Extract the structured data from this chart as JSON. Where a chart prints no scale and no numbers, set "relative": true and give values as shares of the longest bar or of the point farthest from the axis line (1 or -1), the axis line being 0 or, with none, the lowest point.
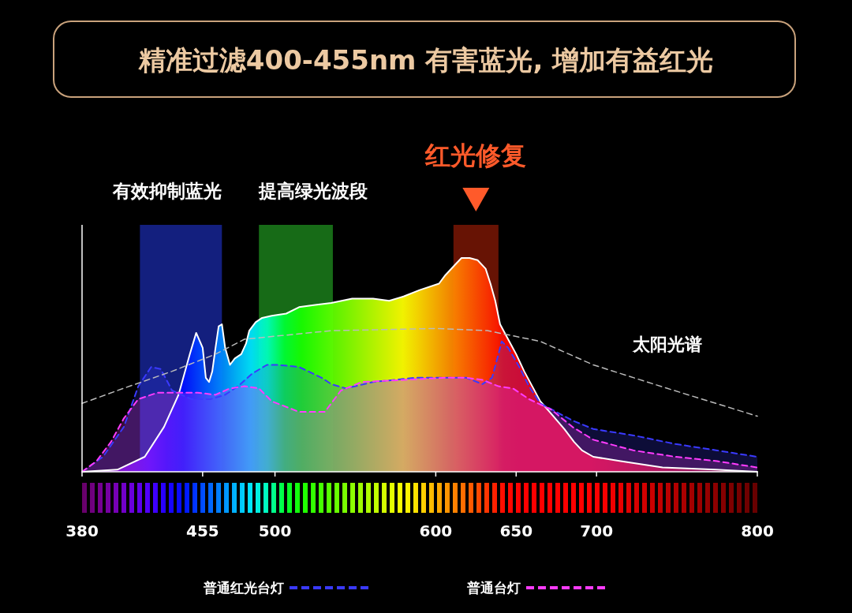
{
  "chart_data": {
    "type": "area",
    "title": "精准过滤400-455nm 有害蓝光, 增加有益红光",
    "relative": true,
    "xlim": [
      380,
      800
    ],
    "xticks": [
      380,
      455,
      500,
      600,
      650,
      700,
      800
    ],
    "bands": [
      {
        "axis": "x",
        "from": 416,
        "to": 467,
        "label": "有效抑制蓝光",
        "color": "#1a2aa8"
      },
      {
        "axis": "x",
        "from": 490,
        "to": 536,
        "label": "提高绿光波段",
        "color": "#1f8f1f"
      },
      {
        "axis": "x",
        "from": 611,
        "to": 639,
        "label": "红光修复",
        "color": "#8a1a05"
      }
    ],
    "legend": "bottom",
    "series": [
      {
        "color": "#ffffff",
        "line_style": "solid",
        "x": [
          380,
          402,
          419,
          431,
          440,
          447,
          451,
          455,
          457,
          459,
          461,
          463,
          465,
          467,
          469,
          472,
          475,
          479,
          482,
          484,
          488,
          492,
          498,
          507,
          515,
          525,
          535,
          548,
          561,
          571,
          580,
          590,
          602,
          606,
          611,
          616,
          621,
          626,
          631,
          634,
          637,
          640,
          645,
          650,
          655,
          660,
          665,
          672,
          680,
          686,
          691,
          698,
          715,
          741,
          774,
          800
        ],
        "values": [
          0,
          0.01,
          0.07,
          0.21,
          0.36,
          0.55,
          0.65,
          0.58,
          0.44,
          0.42,
          0.47,
          0.58,
          0.68,
          0.69,
          0.58,
          0.5,
          0.53,
          0.55,
          0.6,
          0.66,
          0.7,
          0.72,
          0.73,
          0.74,
          0.77,
          0.78,
          0.79,
          0.81,
          0.81,
          0.8,
          0.82,
          0.85,
          0.88,
          0.92,
          0.96,
          1,
          1,
          0.99,
          0.95,
          0.88,
          0.8,
          0.69,
          0.62,
          0.55,
          0.47,
          0.4,
          0.33,
          0.27,
          0.2,
          0.14,
          0.1,
          0.07,
          0.05,
          0.02,
          0.01,
          0
        ]
      },
      {
        "name": "普通红光台灯",
        "color": "#3a3aff",
        "line_style": "dashed",
        "x": [
          380,
          393,
          406,
          415,
          423,
          429,
          436,
          448,
          460,
          469,
          477,
          486,
          495,
          502,
          515,
          529,
          535,
          544,
          561,
          587,
          606,
          619,
          629,
          635,
          639,
          641,
          645,
          652,
          658,
          665,
          675,
          685,
          698,
          723,
          749,
          775,
          800
        ],
        "values": [
          0,
          0.07,
          0.21,
          0.4,
          0.49,
          0.48,
          0.38,
          0.34,
          0.34,
          0.36,
          0.4,
          0.46,
          0.5,
          0.5,
          0.49,
          0.44,
          0.41,
          0.39,
          0.42,
          0.44,
          0.44,
          0.44,
          0.41,
          0.44,
          0.55,
          0.61,
          0.58,
          0.49,
          0.4,
          0.32,
          0.28,
          0.24,
          0.2,
          0.17,
          0.13,
          0.1,
          0.07
        ]
      },
      {
        "name": "普通台灯",
        "color": "#ff3cff",
        "line_style": "dashed",
        "x": [
          380,
          389,
          398,
          406,
          415,
          427,
          452,
          463,
          472,
          481,
          490,
          498,
          515,
          531,
          541,
          554,
          580,
          606,
          619,
          629,
          639,
          648,
          658,
          672,
          685,
          698,
          723,
          749,
          775,
          800
        ],
        "values": [
          0,
          0.05,
          0.14,
          0.25,
          0.34,
          0.37,
          0.37,
          0.36,
          0.39,
          0.4,
          0.39,
          0.33,
          0.28,
          0.28,
          0.38,
          0.42,
          0.43,
          0.44,
          0.44,
          0.43,
          0.4,
          0.39,
          0.34,
          0.29,
          0.21,
          0.15,
          0.1,
          0.07,
          0.05,
          0.02
        ]
      },
      {
        "type": "line",
        "name": "太阳光谱",
        "color": "#bbbbbb",
        "line_style": "dashed",
        "x": [
          380,
          402,
          436,
          463,
          481,
          535,
          600,
          632,
          665,
          698,
          744,
          800
        ],
        "values": [
          0.32,
          0.38,
          0.47,
          0.55,
          0.62,
          0.66,
          0.67,
          0.66,
          0.61,
          0.5,
          0.39,
          0.26
        ]
      }
    ]
  }
}
